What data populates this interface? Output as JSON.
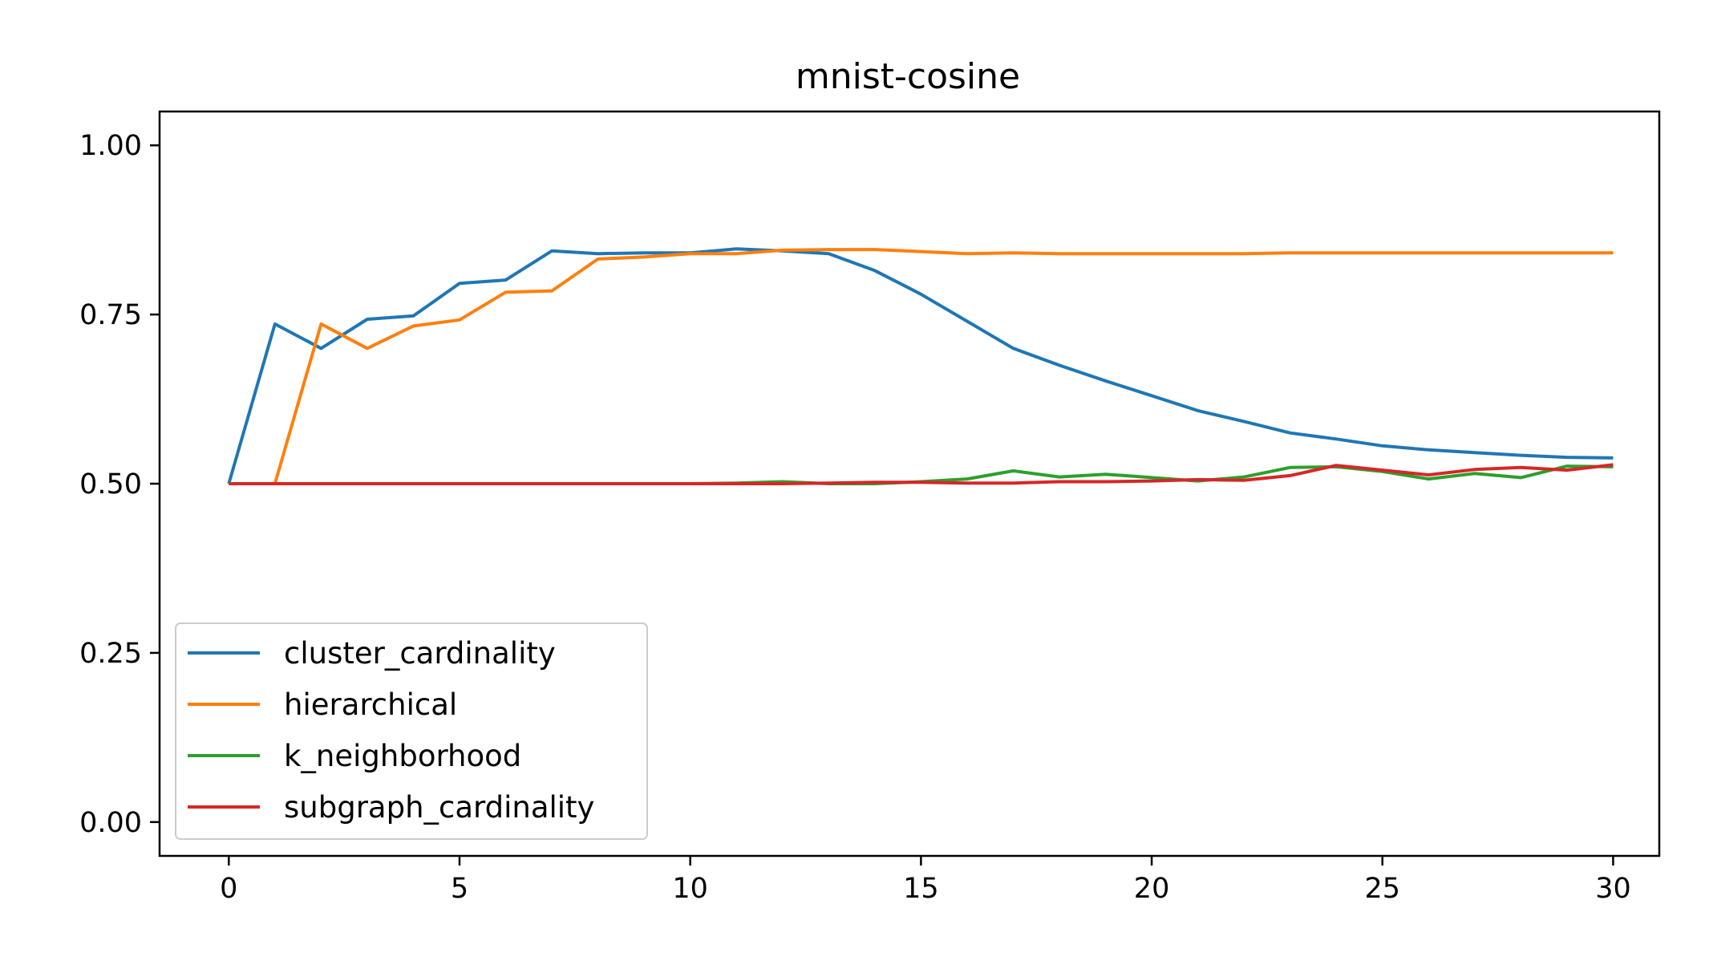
{
  "chart_data": {
    "type": "line",
    "title": "mnist-cosine",
    "xlabel": "",
    "ylabel": "",
    "xlim": [
      -1.5,
      31
    ],
    "ylim": [
      -0.05,
      1.05
    ],
    "x_ticks": [
      0,
      5,
      10,
      15,
      20,
      25,
      30
    ],
    "y_ticks": [
      0.0,
      0.25,
      0.5,
      0.75,
      1.0
    ],
    "x_tick_labels": [
      "0",
      "5",
      "10",
      "15",
      "20",
      "25",
      "30"
    ],
    "y_tick_labels": [
      "0.00",
      "0.25",
      "0.50",
      "0.75",
      "1.00"
    ],
    "grid": false,
    "legend_position": "lower-left",
    "x": [
      0,
      1,
      2,
      3,
      4,
      5,
      6,
      7,
      8,
      9,
      10,
      11,
      12,
      13,
      14,
      15,
      16,
      17,
      18,
      19,
      20,
      21,
      22,
      23,
      24,
      25,
      26,
      27,
      28,
      29,
      30
    ],
    "series": [
      {
        "name": "cluster_cardinality",
        "color": "#1f77b4",
        "values": [
          0.5,
          0.736,
          0.7,
          0.743,
          0.748,
          0.796,
          0.801,
          0.844,
          0.84,
          0.841,
          0.841,
          0.847,
          0.844,
          0.84,
          0.815,
          0.78,
          0.74,
          0.7,
          0.675,
          0.652,
          0.63,
          0.608,
          0.592,
          0.575,
          0.566,
          0.556,
          0.55,
          0.546,
          0.542,
          0.539,
          0.538
        ]
      },
      {
        "name": "hierarchical",
        "color": "#ff7f0e",
        "values": [
          0.5,
          0.5,
          0.736,
          0.7,
          0.733,
          0.742,
          0.783,
          0.785,
          0.832,
          0.835,
          0.84,
          0.84,
          0.845,
          0.846,
          0.846,
          0.843,
          0.84,
          0.841,
          0.84,
          0.84,
          0.84,
          0.84,
          0.84,
          0.841,
          0.841,
          0.841,
          0.841,
          0.841,
          0.841,
          0.841,
          0.841
        ]
      },
      {
        "name": "k_neighborhood",
        "color": "#2ca02c",
        "values": [
          0.5,
          0.5,
          0.5,
          0.5,
          0.5,
          0.5,
          0.5,
          0.5,
          0.5,
          0.5,
          0.5,
          0.501,
          0.503,
          0.5,
          0.5,
          0.503,
          0.507,
          0.519,
          0.51,
          0.514,
          0.509,
          0.504,
          0.51,
          0.524,
          0.525,
          0.518,
          0.507,
          0.515,
          0.509,
          0.526,
          0.525
        ]
      },
      {
        "name": "subgraph_cardinality",
        "color": "#d62728",
        "values": [
          0.5,
          0.5,
          0.5,
          0.5,
          0.5,
          0.5,
          0.5,
          0.5,
          0.5,
          0.5,
          0.5,
          0.5,
          0.5,
          0.501,
          0.502,
          0.502,
          0.501,
          0.501,
          0.503,
          0.503,
          0.504,
          0.506,
          0.505,
          0.512,
          0.527,
          0.52,
          0.513,
          0.521,
          0.524,
          0.52,
          0.528
        ]
      }
    ]
  }
}
